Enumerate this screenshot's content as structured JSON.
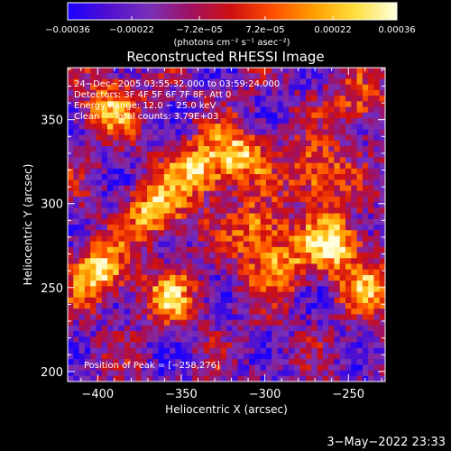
{
  "chart_data": {
    "type": "heatmap",
    "title": "Reconstructed RHESSI Image",
    "xlabel": "Heliocentric X (arcsec)",
    "ylabel": "Heliocentric Y (arcsec)",
    "xlim": [
      -418,
      -228
    ],
    "ylim": [
      194,
      381
    ],
    "xticks": [
      -400,
      -350,
      -300,
      -250
    ],
    "yticks": [
      200,
      250,
      300,
      350
    ],
    "xtick_labels": [
      "−400",
      "−350",
      "−300",
      "−250"
    ],
    "ytick_labels": [
      "200",
      "250",
      "300",
      "350"
    ],
    "colorbar": {
      "range": [
        -0.00036,
        0.00036
      ],
      "tick_labels": [
        "−0.00036",
        "−0.00022",
        "−7.2e−05",
        "7.2e−05",
        "0.00022",
        "0.00036"
      ],
      "tick_values": [
        -0.00036,
        -0.00022,
        -7.2e-05,
        7.2e-05,
        0.00022,
        0.00036
      ],
      "units": "(photons cm⁻² s⁻¹ asec⁻²)"
    },
    "colormap": [
      "#1a00ff",
      "#5010d0",
      "#7a30b8",
      "#a01060",
      "#d01010",
      "#ff5000",
      "#ffa000",
      "#ffe040",
      "#ffffe0"
    ],
    "grid_n": 56,
    "annotations": {
      "line1": "24−Dec−2005 03:55:32.000 to 03:59:24.000",
      "line2": "Detectors: 3F 4F 5F 6F 7F 8F, Att 0",
      "line3": "Energy Range: 12.0 − 25.0 keV",
      "line4": "Clean     Total counts: 3.79E+03",
      "peak": "Position of Peak = [−258,276]"
    },
    "sources": [
      {
        "x": -365,
        "y": 296,
        "strength": 1.0
      },
      {
        "x": -400,
        "y": 260,
        "strength": 1.1
      },
      {
        "x": -340,
        "y": 320,
        "strength": 0.95
      },
      {
        "x": -316,
        "y": 330,
        "strength": 0.9
      },
      {
        "x": -270,
        "y": 318,
        "strength": 0.85
      },
      {
        "x": -258,
        "y": 276,
        "strength": 1.15
      },
      {
        "x": -304,
        "y": 284,
        "strength": 0.8
      },
      {
        "x": -392,
        "y": 358,
        "strength": 0.8
      },
      {
        "x": -356,
        "y": 244,
        "strength": 0.75
      },
      {
        "x": -292,
        "y": 262,
        "strength": 0.7
      },
      {
        "x": -244,
        "y": 358,
        "strength": 0.6
      },
      {
        "x": -236,
        "y": 250,
        "strength": 0.7
      }
    ]
  },
  "footer": {
    "timestamp": "3−May−2022 23:33"
  }
}
